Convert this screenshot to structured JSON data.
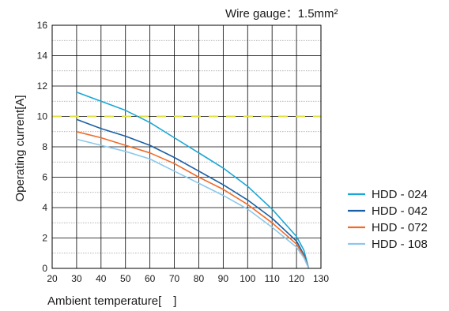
{
  "chart_data": {
    "type": "line",
    "title": "Wire gauge：1.5mm²",
    "xlabel": "Ambient temperature[　]",
    "ylabel": "Operating current[A]",
    "xlim": [
      20,
      130
    ],
    "ylim": [
      0,
      16
    ],
    "x_ticks": [
      "20",
      "30",
      "40",
      "50",
      "60",
      "70",
      "80",
      "90",
      "100",
      "110",
      "120",
      "130"
    ],
    "y_ticks": [
      "0",
      "2",
      "4",
      "6",
      "8",
      "10",
      "12",
      "14",
      "16"
    ],
    "grid": true,
    "legend_position": "right",
    "reference_line": {
      "y": 10,
      "color": "#e0e040"
    },
    "series": [
      {
        "name": "HDD - 024",
        "color": "#1aa6d6",
        "points": [
          [
            30,
            11.6
          ],
          [
            40,
            11.0
          ],
          [
            50,
            10.4
          ],
          [
            60,
            9.6
          ],
          [
            70,
            8.6
          ],
          [
            80,
            7.6
          ],
          [
            90,
            6.6
          ],
          [
            100,
            5.4
          ],
          [
            110,
            3.9
          ],
          [
            120,
            2.1
          ],
          [
            123,
            1.2
          ],
          [
            125,
            0
          ]
        ]
      },
      {
        "name": "HDD - 042",
        "color": "#1a5fa3",
        "points": [
          [
            30,
            9.8
          ],
          [
            40,
            9.2
          ],
          [
            50,
            8.7
          ],
          [
            60,
            8.1
          ],
          [
            70,
            7.3
          ],
          [
            80,
            6.4
          ],
          [
            90,
            5.5
          ],
          [
            100,
            4.5
          ],
          [
            110,
            3.3
          ],
          [
            120,
            1.8
          ],
          [
            123,
            0.9
          ],
          [
            125,
            0
          ]
        ]
      },
      {
        "name": "HDD - 072",
        "color": "#f06a28",
        "points": [
          [
            30,
            9.0
          ],
          [
            40,
            8.6
          ],
          [
            50,
            8.1
          ],
          [
            60,
            7.6
          ],
          [
            70,
            6.9
          ],
          [
            80,
            6.0
          ],
          [
            90,
            5.2
          ],
          [
            100,
            4.2
          ],
          [
            110,
            3.0
          ],
          [
            120,
            1.6
          ],
          [
            123,
            0.8
          ],
          [
            125,
            0
          ]
        ]
      },
      {
        "name": "HDD - 108",
        "color": "#8dc8ec",
        "points": [
          [
            30,
            8.5
          ],
          [
            40,
            8.1
          ],
          [
            50,
            7.7
          ],
          [
            60,
            7.2
          ],
          [
            70,
            6.4
          ],
          [
            80,
            5.6
          ],
          [
            90,
            4.8
          ],
          [
            100,
            3.9
          ],
          [
            110,
            2.7
          ],
          [
            120,
            1.4
          ],
          [
            123,
            0.7
          ],
          [
            125,
            0
          ]
        ]
      }
    ]
  }
}
